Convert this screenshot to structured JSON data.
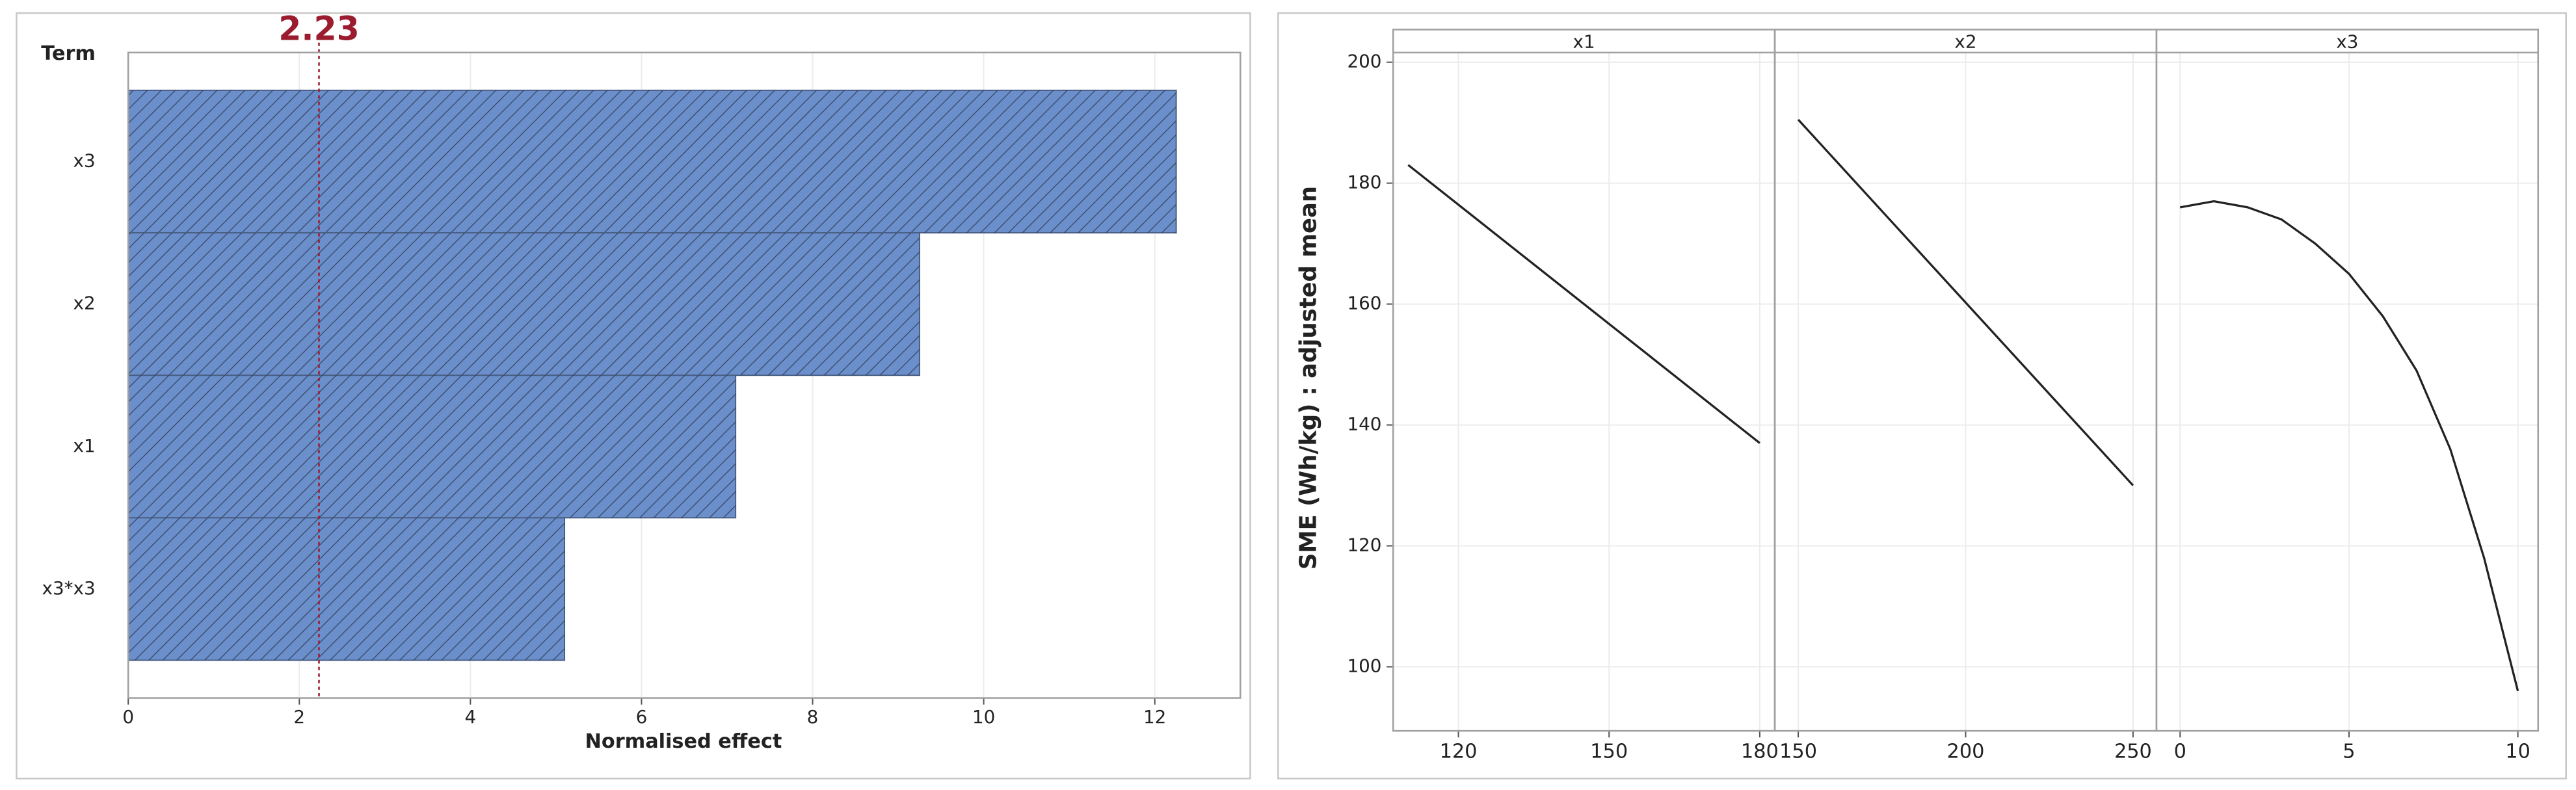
{
  "chart_data": [
    {
      "type": "bar",
      "orientation": "horizontal",
      "y_label": "Term",
      "x_label": "Normalised effect",
      "categories": [
        "x3",
        "x2",
        "x1",
        "x3*x3"
      ],
      "values": [
        12.25,
        9.25,
        7.1,
        5.1
      ],
      "color": "#6b8fca",
      "hatch": true,
      "reference_line": 2.23,
      "reference_color": "#9b1c2e",
      "xlim": [
        0,
        13
      ],
      "xticks": [
        0,
        2,
        4,
        6,
        8,
        10,
        12
      ],
      "grid": true
    },
    {
      "type": "line",
      "y_label": "SME (Wh/kg) : adjusted mean",
      "ylim": [
        89.4,
        205.4
      ],
      "yticks": [
        100,
        120,
        140,
        160,
        180,
        200
      ],
      "color": "#222222",
      "grid": true,
      "panels": [
        {
          "title": "x1",
          "x": [
            110,
            180
          ],
          "values": [
            183,
            137
          ],
          "xlim": [
            107,
            183
          ],
          "xticks": [
            120,
            150,
            180
          ]
        },
        {
          "title": "x2",
          "x": [
            150,
            250
          ],
          "values": [
            190.5,
            130
          ],
          "xlim": [
            143,
            257
          ],
          "xticks": [
            150,
            200,
            250
          ]
        },
        {
          "title": "x3",
          "x": [
            0,
            1,
            2,
            3,
            4,
            5,
            6,
            7,
            8,
            9,
            10
          ],
          "values": [
            176,
            177,
            176,
            174,
            170,
            165,
            158,
            149,
            136,
            118,
            96
          ],
          "xlim": [
            -0.7,
            10.6
          ],
          "xticks": [
            0,
            5,
            10
          ]
        }
      ]
    }
  ]
}
